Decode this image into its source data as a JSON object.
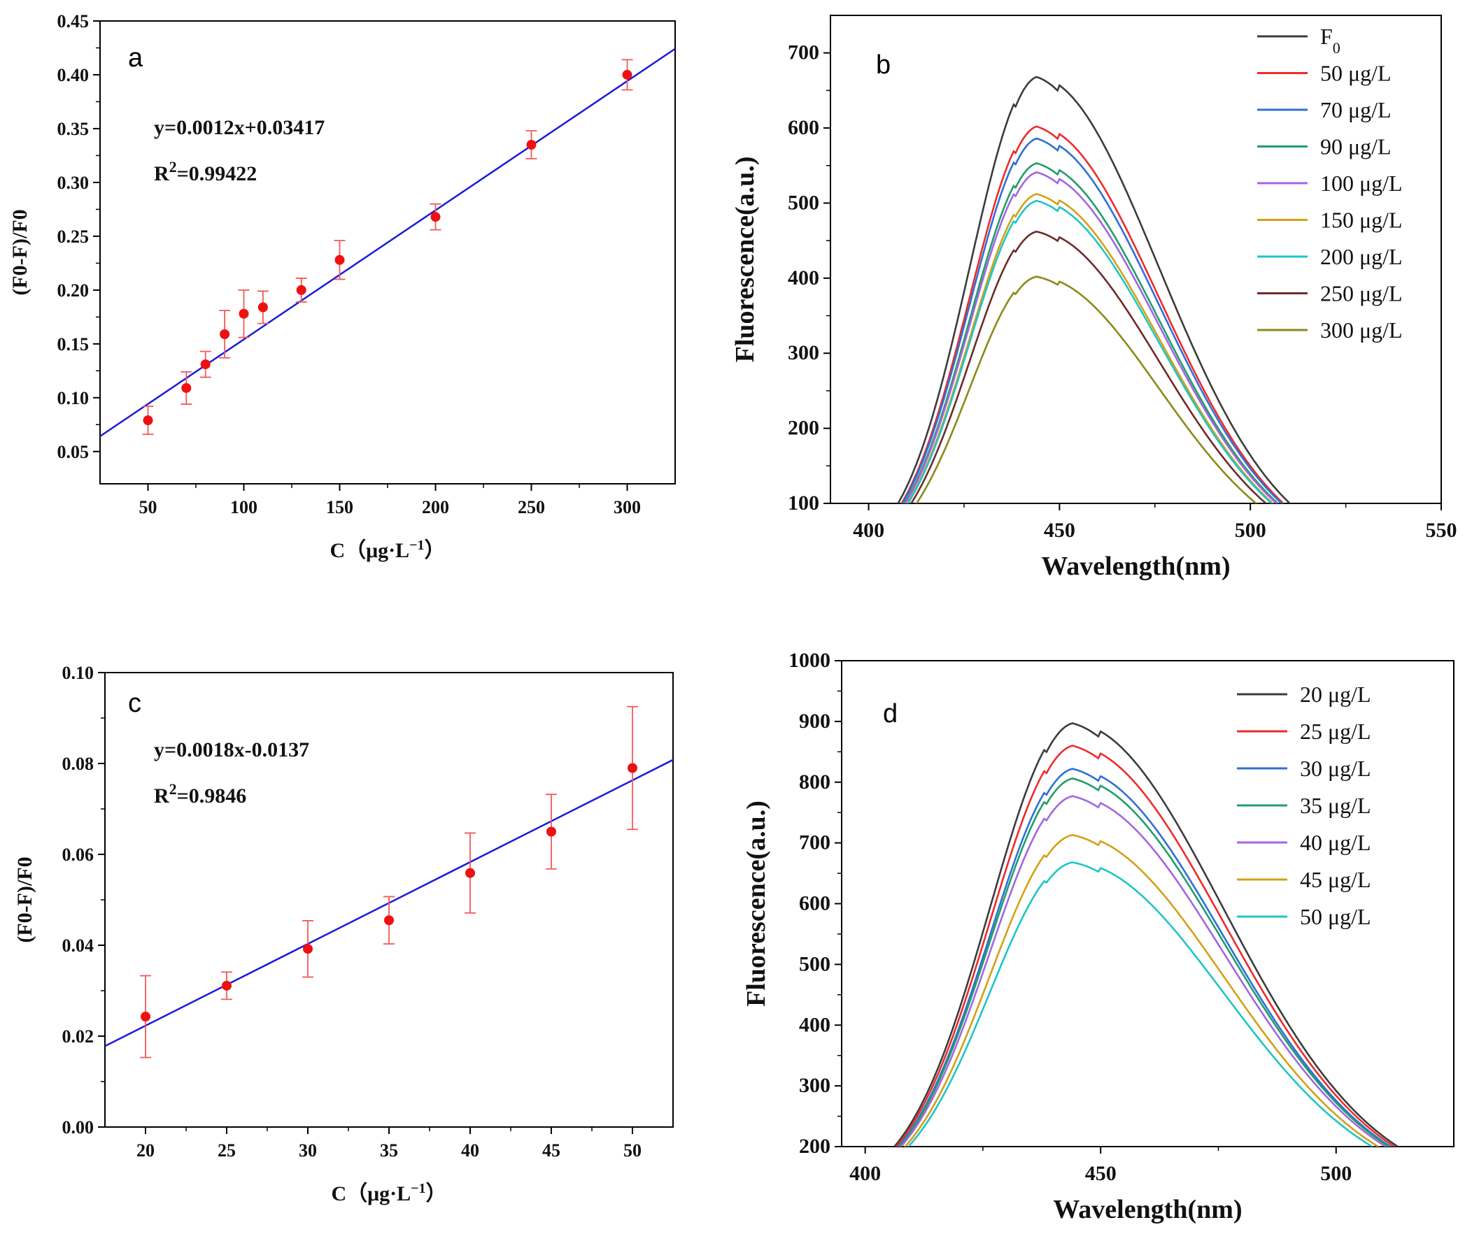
{
  "chart_data": [
    {
      "panel": "a",
      "type": "scatter",
      "title": "",
      "xlabel_main": "C",
      "xlabel_unit": "（μg·L",
      "xlabel_sup": "−1",
      "xlabel_close": "）",
      "ylabel": "(F0-F)/F0",
      "xlim": [
        25,
        325
      ],
      "ylim": [
        0.02,
        0.45
      ],
      "xticks": [
        50,
        100,
        150,
        200,
        250,
        300
      ],
      "yticks": [
        0.05,
        0.1,
        0.15,
        0.2,
        0.25,
        0.3,
        0.35,
        0.4,
        0.45
      ],
      "xtick_labels": [
        "50",
        "100",
        "150",
        "200",
        "250",
        "300"
      ],
      "ytick_labels": [
        "0.05",
        "0.10",
        "0.15",
        "0.20",
        "0.25",
        "0.30",
        "0.35",
        "0.40",
        "0.45"
      ],
      "points": {
        "x": [
          50,
          70,
          80,
          90,
          100,
          110,
          130,
          150,
          200,
          250,
          300
        ],
        "y": [
          0.079,
          0.109,
          0.131,
          0.159,
          0.178,
          0.184,
          0.2,
          0.228,
          0.268,
          0.335,
          0.4
        ],
        "err": [
          0.013,
          0.015,
          0.012,
          0.022,
          0.022,
          0.015,
          0.011,
          0.018,
          0.012,
          0.013,
          0.014
        ]
      },
      "fit": {
        "slope": 0.0012,
        "intercept": 0.03417
      },
      "equation": "y=0.0012x+0.03417",
      "r2_label": "R",
      "r2_sup": "2",
      "r2_value": "=0.99422",
      "marker_color": "#ee1111",
      "line_color": "#1a1adc"
    },
    {
      "panel": "b",
      "type": "line",
      "title": "",
      "xlabel": "Wavelength(nm)",
      "ylabel": "Fluorescence(a.u.)",
      "xlim": [
        390,
        550
      ],
      "ylim": [
        100,
        750
      ],
      "xticks": [
        400,
        450,
        500,
        550
      ],
      "yticks": [
        100,
        200,
        300,
        400,
        500,
        600,
        700
      ],
      "xtick_labels": [
        "400",
        "450",
        "500",
        "550"
      ],
      "ytick_labels": [
        "100",
        "200",
        "300",
        "400",
        "500",
        "600",
        "700"
      ],
      "curve_range": [
        400,
        530
      ],
      "series": [
        {
          "name": "F",
          "name_sub": "0",
          "peak": 668,
          "color": "#3c3c3c"
        },
        {
          "name": "50 μg/L",
          "peak": 602,
          "color": "#ee2b2b"
        },
        {
          "name": "70 μg/L",
          "peak": 586,
          "color": "#2f6fd6"
        },
        {
          "name": "90 μg/L",
          "peak": 553,
          "color": "#1f9e6a"
        },
        {
          "name": "100 μg/L",
          "peak": 541,
          "color": "#a266e0"
        },
        {
          "name": "150 μg/L",
          "peak": 512,
          "color": "#d4a017"
        },
        {
          "name": "200 μg/L",
          "peak": 503,
          "color": "#20c5c5"
        },
        {
          "name": "250 μg/L",
          "peak": 462,
          "color": "#6e2a2a"
        },
        {
          "name": "300 μg/L",
          "peak": 402,
          "color": "#8a8a1a"
        }
      ]
    },
    {
      "panel": "c",
      "type": "scatter",
      "title": "",
      "xlabel_main": "C",
      "xlabel_unit": "（μg·L",
      "xlabel_sup": "−1",
      "xlabel_close": "）",
      "ylabel": "(F0-F)/F0",
      "xlim": [
        17.5,
        52.5
      ],
      "ylim": [
        0.0,
        0.1
      ],
      "xticks": [
        20,
        25,
        30,
        35,
        40,
        45,
        50
      ],
      "yticks": [
        0.0,
        0.02,
        0.04,
        0.06,
        0.08,
        0.1
      ],
      "xtick_labels": [
        "20",
        "25",
        "30",
        "35",
        "40",
        "45",
        "50"
      ],
      "ytick_labels": [
        "0.00",
        "0.02",
        "0.04",
        "0.06",
        "0.08",
        "0.10"
      ],
      "points": {
        "x": [
          20,
          25,
          30,
          35,
          40,
          45,
          50
        ],
        "y": [
          0.0243,
          0.0311,
          0.0392,
          0.0455,
          0.0559,
          0.065,
          0.079
        ],
        "err": [
          0.009,
          0.003,
          0.0062,
          0.0052,
          0.0088,
          0.0082,
          0.0135
        ]
      },
      "fit": {
        "slope": 0.0018,
        "intercept": -0.0137
      },
      "equation": "y=0.0018x-0.0137",
      "r2_label": "R",
      "r2_sup": "2",
      "r2_value": "=0.9846",
      "marker_color": "#ee1111",
      "line_color": "#1a1adc"
    },
    {
      "panel": "d",
      "type": "line",
      "title": "",
      "xlabel": "Wavelength(nm)",
      "ylabel": "Fluorescence(a.u.)",
      "xlim": [
        395,
        525
      ],
      "ylim": [
        200,
        1000
      ],
      "xticks": [
        400,
        450,
        500
      ],
      "yticks": [
        200,
        300,
        400,
        500,
        600,
        700,
        800,
        900,
        1000
      ],
      "xtick_labels": [
        "400",
        "450",
        "500"
      ],
      "ytick_labels": [
        "200",
        "300",
        "400",
        "500",
        "600",
        "700",
        "800",
        "900",
        "1000"
      ],
      "curve_range": [
        400,
        520
      ],
      "series": [
        {
          "name": "20 μg/L",
          "peak": 897,
          "color": "#3c3c3c"
        },
        {
          "name": "25 μg/L",
          "peak": 860,
          "color": "#ee2b2b"
        },
        {
          "name": "30 μg/L",
          "peak": 822,
          "color": "#2f6fd6"
        },
        {
          "name": "35 μg/L",
          "peak": 806,
          "color": "#1f9e6a"
        },
        {
          "name": "40 μg/L",
          "peak": 777,
          "color": "#a266e0"
        },
        {
          "name": "45 μg/L",
          "peak": 713,
          "color": "#d4a017"
        },
        {
          "name": "50 μg/L",
          "peak": 668,
          "color": "#20c5c5"
        }
      ]
    }
  ]
}
